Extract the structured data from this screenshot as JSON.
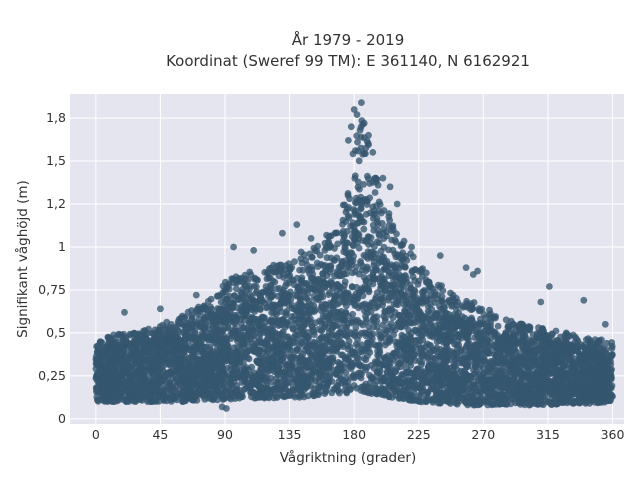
{
  "chart_data": {
    "type": "scatter",
    "title": "År 1979 - 2019",
    "subtitle": "Koordinat (Sweref 99 TM): E 361140, N 6162921",
    "xlabel": "Vågriktning (grader)",
    "ylabel": "Signifikant våghöjd (m)",
    "xlim": [
      -18,
      368
    ],
    "ylim": [
      -0.03,
      1.89
    ],
    "x_ticks": [
      0,
      45,
      90,
      135,
      180,
      225,
      270,
      315,
      360
    ],
    "x_tick_labels": [
      "0",
      "45",
      "90",
      "135",
      "180",
      "225",
      "270",
      "315",
      "360"
    ],
    "y_ticks": [
      0,
      0.25,
      0.5,
      0.75,
      1,
      1.25,
      1.5,
      1.75
    ],
    "y_tick_labels": [
      "0",
      "0,25",
      "0,5",
      "0,75",
      "1",
      "1,2",
      "1,5",
      "1,8"
    ],
    "grid": true,
    "background": "#e5e5f0",
    "marker_color": "#34566e",
    "envelope": {
      "x": [
        0,
        20,
        45,
        60,
        80,
        90,
        100,
        120,
        135,
        150,
        165,
        175,
        180,
        185,
        190,
        195,
        200,
        210,
        225,
        240,
        255,
        270,
        285,
        300,
        315,
        330,
        345,
        360
      ],
      "upper": [
        0.47,
        0.5,
        0.55,
        0.6,
        0.7,
        0.8,
        0.84,
        0.88,
        0.94,
        1.0,
        1.1,
        1.35,
        1.6,
        1.75,
        1.6,
        1.42,
        1.28,
        1.1,
        0.9,
        0.78,
        0.7,
        0.66,
        0.58,
        0.55,
        0.52,
        0.5,
        0.47,
        0.45
      ],
      "lower": [
        0.1,
        0.1,
        0.1,
        0.1,
        0.11,
        0.11,
        0.12,
        0.12,
        0.12,
        0.13,
        0.14,
        0.15,
        0.16,
        0.16,
        0.15,
        0.14,
        0.13,
        0.12,
        0.1,
        0.09,
        0.08,
        0.08,
        0.08,
        0.08,
        0.08,
        0.09,
        0.09,
        0.1
      ]
    },
    "outliers": [
      {
        "x": 180,
        "y": 1.8
      },
      {
        "x": 185,
        "y": 1.84
      },
      {
        "x": 182,
        "y": 1.77
      },
      {
        "x": 187,
        "y": 1.72
      },
      {
        "x": 178,
        "y": 1.7
      },
      {
        "x": 190,
        "y": 1.65
      },
      {
        "x": 176,
        "y": 1.62
      },
      {
        "x": 193,
        "y": 1.55
      },
      {
        "x": 200,
        "y": 1.4
      },
      {
        "x": 205,
        "y": 1.35
      },
      {
        "x": 210,
        "y": 1.25
      },
      {
        "x": 140,
        "y": 1.13
      },
      {
        "x": 130,
        "y": 1.08
      },
      {
        "x": 96,
        "y": 1.0
      },
      {
        "x": 110,
        "y": 0.98
      },
      {
        "x": 150,
        "y": 1.05
      },
      {
        "x": 220,
        "y": 1.0
      },
      {
        "x": 240,
        "y": 0.95
      },
      {
        "x": 258,
        "y": 0.88
      },
      {
        "x": 266,
        "y": 0.86
      },
      {
        "x": 263,
        "y": 0.84
      },
      {
        "x": 310,
        "y": 0.68
      },
      {
        "x": 316,
        "y": 0.77
      },
      {
        "x": 340,
        "y": 0.69
      },
      {
        "x": 355,
        "y": 0.55
      },
      {
        "x": 20,
        "y": 0.62
      },
      {
        "x": 45,
        "y": 0.64
      },
      {
        "x": 70,
        "y": 0.72
      },
      {
        "x": 88,
        "y": 0.07
      },
      {
        "x": 91,
        "y": 0.06
      }
    ]
  }
}
